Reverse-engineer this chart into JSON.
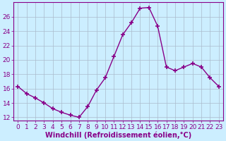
{
  "x": [
    0,
    1,
    2,
    3,
    4,
    5,
    6,
    7,
    8,
    9,
    10,
    11,
    12,
    13,
    14,
    15,
    16,
    17,
    18,
    19,
    20,
    21,
    22,
    23
  ],
  "y": [
    16.3,
    15.3,
    14.7,
    14.0,
    13.2,
    12.7,
    12.3,
    12.0,
    13.5,
    15.8,
    17.5,
    20.5,
    23.5,
    25.2,
    27.2,
    27.3,
    24.7,
    19.0,
    18.5,
    19.0,
    19.5,
    19.0,
    17.5,
    16.3
  ],
  "line_color": "#880088",
  "marker": "+",
  "markersize": 4,
  "linewidth": 1.0,
  "bg_color": "#cceeff",
  "grid_color": "#aabbcc",
  "xlabel": "Windchill (Refroidissement éolien,°C)",
  "xlabel_color": "#880088",
  "tick_color": "#880088",
  "ylim": [
    11.5,
    28.0
  ],
  "yticks": [
    12,
    14,
    16,
    18,
    20,
    22,
    24,
    26
  ],
  "xticks": [
    0,
    1,
    2,
    3,
    4,
    5,
    6,
    7,
    8,
    9,
    10,
    11,
    12,
    13,
    14,
    15,
    16,
    17,
    18,
    19,
    20,
    21,
    22,
    23
  ],
  "font_size": 6.5,
  "xlabel_fontsize": 7.0,
  "spine_color": "#880088"
}
